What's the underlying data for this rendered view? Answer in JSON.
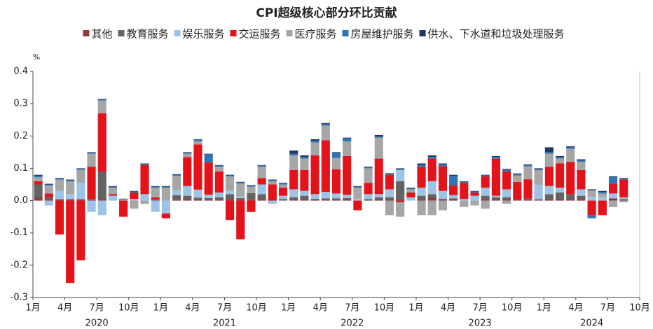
{
  "chart_data": {
    "type": "stacked_bar",
    "title": "CPI超级核心部分环比贡献",
    "y_unit": "%",
    "categories": [
      "1月",
      null,
      null,
      "4月",
      null,
      null,
      "7月",
      null,
      null,
      "10月",
      null,
      null,
      "1月",
      null,
      null,
      "4月",
      null,
      null,
      "7月",
      null,
      null,
      "10月",
      null,
      null,
      "1月",
      null,
      null,
      "4月",
      null,
      null,
      "7月",
      null,
      null,
      "10月",
      null,
      null,
      "1月",
      null,
      null,
      "4月",
      null,
      null,
      "7月",
      null,
      null,
      "10月",
      null,
      null,
      "1月",
      null,
      null,
      "4月",
      null,
      null,
      "7月",
      null,
      null,
      "10月"
    ],
    "x_groups": [
      "2020",
      "2021",
      "2022",
      "2023",
      "2024"
    ],
    "ylim": [
      -0.3,
      0.4
    ],
    "yticks": [
      -0.3,
      -0.2,
      -0.1,
      {
        "value": 0,
        "label": "0.0"
      },
      0.1,
      0.2,
      0.3,
      0.4
    ],
    "series": [
      {
        "name": "其他",
        "color": "#8b3a3e",
        "values": [
          0.01,
          0.005,
          0.002,
          0.002,
          0.002,
          0.002,
          0.005,
          0,
          0,
          0,
          0,
          0,
          0,
          0.002,
          0.005,
          0.004,
          0.003,
          0.005,
          0.005,
          0.003,
          0.003,
          0.005,
          0,
          0,
          0.005,
          0.005,
          0.005,
          0.004,
          0.004,
          0.005,
          0,
          0.002,
          0.005,
          0.005,
          0.005,
          0,
          0.005,
          0.01,
          0.005,
          0.005,
          0,
          0,
          0.005,
          0.005,
          0.005,
          0.003,
          0.003,
          0.004,
          0.005,
          0.005,
          0.005,
          0.005,
          0,
          0,
          0.007,
          0.002,
          null,
          null
        ]
      },
      {
        "name": "教育服务",
        "color": "#636363",
        "values": [
          0.04,
          0.005,
          0.003,
          0.003,
          0.003,
          0.003,
          0.085,
          0,
          0,
          0,
          0,
          0.005,
          0,
          0.015,
          0.01,
          0.005,
          0.005,
          0.005,
          0.015,
          0.005,
          0.02,
          0.015,
          0,
          0.005,
          0.005,
          0.01,
          0,
          0.003,
          0.003,
          0.003,
          0,
          0.003,
          0.005,
          0.005,
          0.055,
          0,
          0.01,
          0.01,
          0,
          0.002,
          0,
          0,
          0.01,
          0.005,
          0.005,
          0,
          0.003,
          0,
          0.015,
          0.02,
          0.015,
          0.01,
          0,
          0,
          0,
          0.003,
          null,
          null
        ]
      },
      {
        "name": "娱乐服务",
        "color": "#9dc3e6",
        "values": [
          0,
          -0.015,
          0.025,
          0.015,
          0.05,
          -0.035,
          -0.045,
          0.015,
          0,
          0.005,
          0.02,
          -0.035,
          -0.04,
          0.015,
          0.03,
          0.025,
          0.01,
          0.015,
          0.01,
          0.005,
          0,
          0.03,
          -0.01,
          0.01,
          0.025,
          0.015,
          0.015,
          0.02,
          0.015,
          0.01,
          0.005,
          0.015,
          0.01,
          0.025,
          0.035,
          0.01,
          0.025,
          0.04,
          0.025,
          0.01,
          0.005,
          0.015,
          0.025,
          0.005,
          0.025,
          0,
          0,
          0.045,
          0.025,
          0.015,
          0,
          0.02,
          0.012,
          0.012,
          0.015,
          0.005,
          null,
          null
        ]
      },
      {
        "name": "交运服务",
        "color": "#e3131b",
        "values": [
          0.01,
          0.012,
          -0.105,
          -0.255,
          -0.185,
          0.1,
          0.18,
          0.005,
          -0.05,
          0.02,
          0.09,
          0.005,
          -0.015,
          0,
          0.09,
          0.14,
          0.1,
          0.065,
          -0.06,
          -0.12,
          -0.035,
          0.02,
          0.05,
          0.025,
          0.06,
          0.065,
          0.12,
          0.16,
          0.075,
          0.12,
          -0.03,
          0.035,
          0.11,
          0.045,
          -0.005,
          0.015,
          0.065,
          0.07,
          0.077,
          0.03,
          0.05,
          0.01,
          0.035,
          0.115,
          0.055,
          0.055,
          0.06,
          0,
          0.06,
          0.075,
          0.1,
          0.06,
          -0.045,
          -0.045,
          0.03,
          0.055,
          null,
          null
        ]
      },
      {
        "name": "医疗服务",
        "color": "#a6a6a6",
        "values": [
          0.012,
          0.025,
          0.035,
          0.04,
          0.04,
          0.04,
          0.04,
          0.02,
          0.003,
          -0.025,
          -0.01,
          0.03,
          0.04,
          0.045,
          0.01,
          0.01,
          0,
          0.015,
          0.045,
          0.04,
          0.02,
          0.035,
          0.01,
          0.01,
          0.045,
          0.035,
          0.04,
          0.045,
          0.035,
          0.045,
          0.035,
          0.045,
          0.065,
          -0.045,
          -0.045,
          0.01,
          -0.045,
          -0.045,
          -0.03,
          0,
          -0.02,
          -0.015,
          -0.025,
          0,
          -0.01,
          0.02,
          0.04,
          0.045,
          0.04,
          0.015,
          0.04,
          0.025,
          0.02,
          0.01,
          -0.02,
          -0.005,
          null,
          null
        ]
      },
      {
        "name": "房屋维护服务",
        "color": "#2e75b6",
        "values": [
          0.005,
          0.003,
          0.003,
          0.003,
          0.003,
          0.003,
          0.003,
          0.003,
          0.002,
          0.003,
          0.003,
          0.003,
          0.003,
          0.003,
          0.003,
          0.004,
          0.025,
          0.003,
          0.003,
          0.003,
          0.003,
          0.003,
          0.003,
          0.003,
          0.005,
          0.005,
          0.005,
          0.005,
          0.015,
          0.01,
          0.003,
          0.003,
          0.003,
          0.002,
          0.002,
          0.003,
          0.005,
          0.005,
          0.005,
          0.03,
          0.003,
          0.003,
          0.003,
          0.005,
          0.005,
          0.003,
          0.003,
          0.003,
          0.005,
          0.005,
          0.005,
          0.005,
          -0.01,
          0.005,
          0.02,
          0.003,
          null,
          null
        ]
      },
      {
        "name": "供水、下水道和垃圾处理服务",
        "color": "#1f3864",
        "values": [
          0.003,
          0.002,
          0.002,
          0.002,
          0.002,
          0.002,
          0.002,
          0.002,
          0.001,
          0.002,
          0.002,
          0.002,
          0.002,
          0.002,
          0.002,
          0.002,
          0.002,
          0.002,
          0.002,
          0.002,
          0.002,
          0.002,
          0.002,
          0.002,
          0.01,
          0.005,
          0.005,
          0.003,
          0.003,
          0.002,
          0.002,
          0.002,
          0.005,
          0.003,
          0.003,
          0.002,
          0.005,
          0.005,
          0.003,
          0.003,
          0.002,
          0.002,
          0.002,
          0.003,
          0.003,
          0.003,
          0.003,
          0.003,
          0.015,
          0.003,
          0.003,
          0.003,
          0.003,
          0.003,
          0.003,
          0.002,
          null,
          null
        ]
      }
    ]
  }
}
